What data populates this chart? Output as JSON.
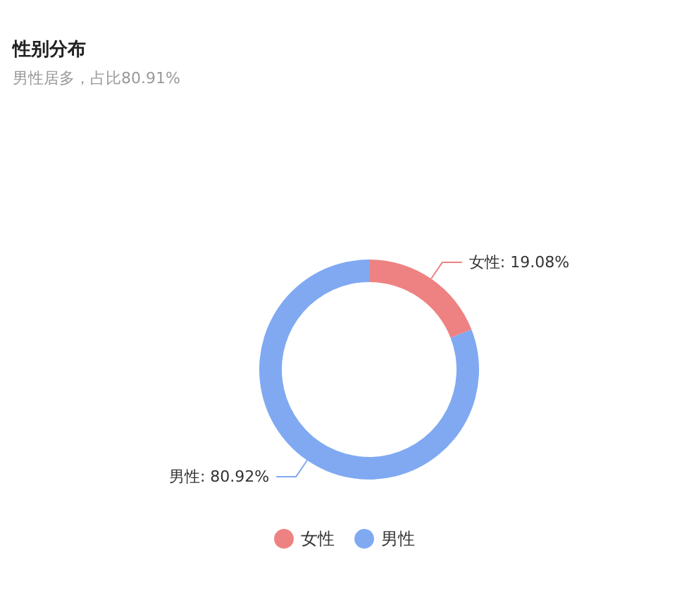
{
  "chart_data": {
    "type": "donut",
    "title": "性别分布",
    "subtitle": "男性居多，占比80.91%",
    "categories": [
      "女性",
      "男性"
    ],
    "values": [
      19.08,
      80.92
    ],
    "colors": [
      "#ee8282",
      "#80a9f2"
    ],
    "value_labels": [
      "女性: 19.08%",
      "男性: 80.92%"
    ],
    "legend": "bottom"
  }
}
